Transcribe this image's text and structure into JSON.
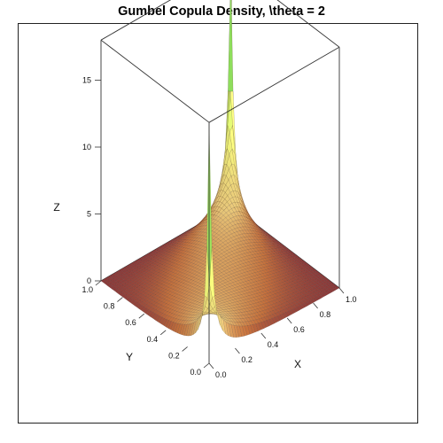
{
  "title": "Gumbel Copula Density, \\theta = 2",
  "chart_data": {
    "type": "surface3d",
    "title": "Gumbel Copula Density, \\theta = 2",
    "function": "Gumbel copula density",
    "theta": 2,
    "xlabel": "X",
    "ylabel": "Y",
    "zlabel": "Z",
    "xlim": [
      0,
      1
    ],
    "ylim": [
      0,
      1
    ],
    "zlim": [
      0,
      18
    ],
    "x_ticks": [
      "0.0",
      "0.2",
      "0.4",
      "0.6",
      "0.8",
      "1.0"
    ],
    "y_ticks": [
      "0.0",
      "0.2",
      "0.4",
      "0.6",
      "0.8",
      "1.0"
    ],
    "z_ticks": [
      "0",
      "5",
      "10",
      "15"
    ],
    "colormap": [
      "#8b3a3a",
      "#c4703c",
      "#e8c87a",
      "#f2ff7a",
      "#8fe05a",
      "#3d5cc8"
    ],
    "grid": false,
    "legend": "none"
  }
}
